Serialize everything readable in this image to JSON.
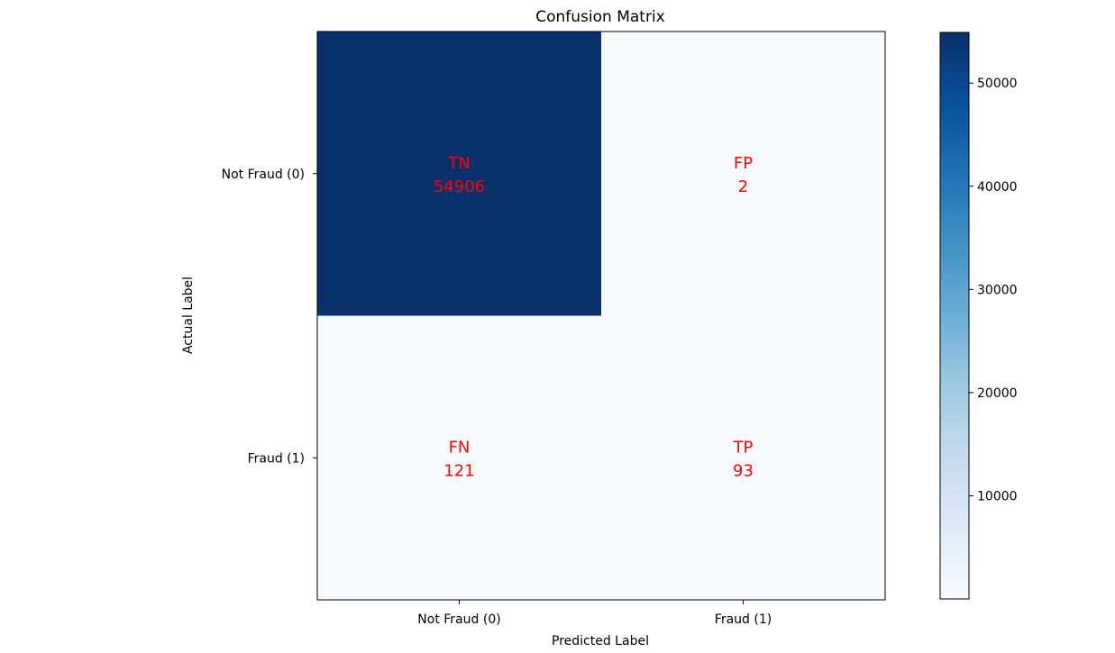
{
  "chart_data": {
    "type": "heatmap",
    "title": "Confusion Matrix",
    "xlabel": "Predicted Label",
    "ylabel": "Actual Label",
    "x_categories": [
      "Not Fraud (0)",
      "Fraud (1)"
    ],
    "y_categories": [
      "Not Fraud (0)",
      "Fraud (1)"
    ],
    "cells": [
      {
        "row": 0,
        "col": 0,
        "label": "TN",
        "value": 54906
      },
      {
        "row": 0,
        "col": 1,
        "label": "FP",
        "value": 2
      },
      {
        "row": 1,
        "col": 0,
        "label": "FN",
        "value": 121
      },
      {
        "row": 1,
        "col": 1,
        "label": "TP",
        "value": 93
      }
    ],
    "colormap": "Blues",
    "colorbar": {
      "range": [
        2,
        54906
      ],
      "ticks": [
        10000,
        20000,
        30000,
        40000,
        50000
      ],
      "tick_labels": [
        "10000",
        "20000",
        "30000",
        "40000",
        "50000"
      ]
    },
    "annotation_color": "#ff0000",
    "grid": false
  }
}
